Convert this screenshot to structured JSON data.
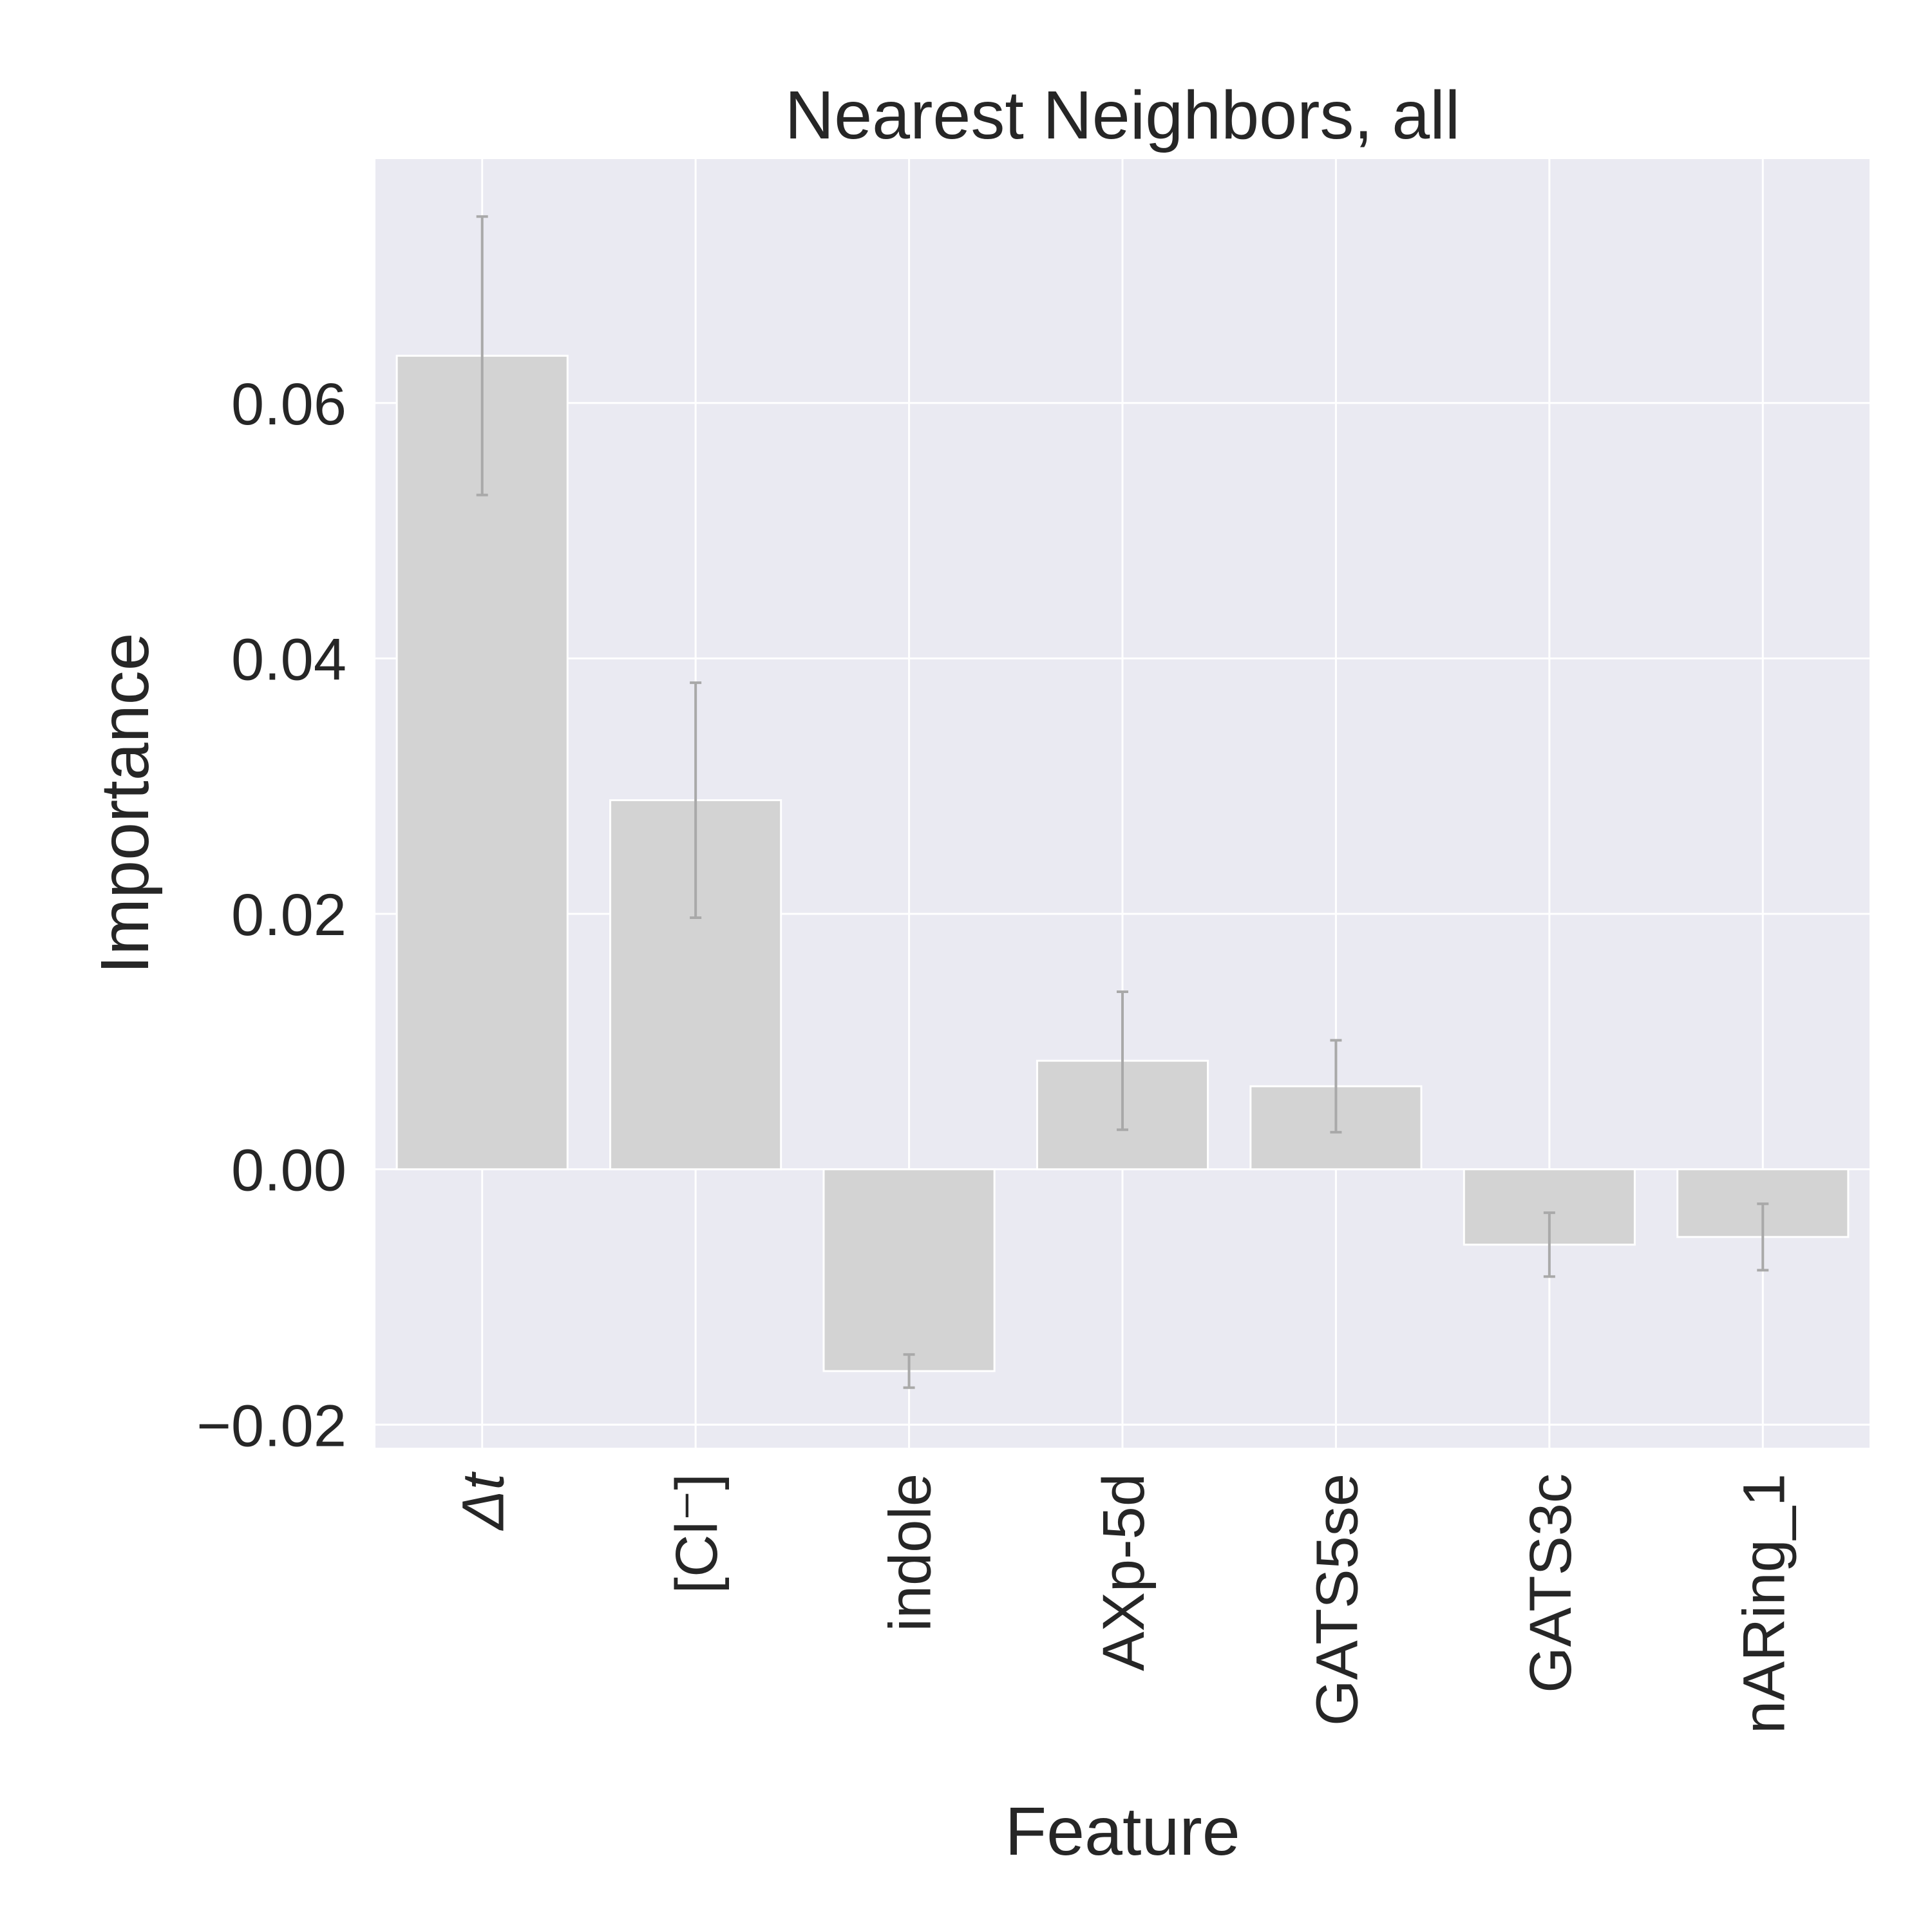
{
  "chart_data": {
    "type": "bar",
    "title": "Nearest Neighbors, all",
    "xlabel": "Feature",
    "ylabel": "Importance",
    "categories": [
      "Δt",
      "[Cl⁻]",
      "indole",
      "AXp-5d",
      "GATS5se",
      "GATS3c",
      "nARing_1"
    ],
    "values": [
      0.0637,
      0.0289,
      -0.0158,
      0.0085,
      0.0065,
      -0.0059,
      -0.0053
    ],
    "error": [
      0.0109,
      0.0092,
      0.0013,
      0.0054,
      0.0036,
      0.0025,
      0.0026
    ],
    "ylim": [
      -0.0218,
      0.0791
    ],
    "yticks": [
      -0.02,
      0.0,
      0.02,
      0.04,
      0.06
    ],
    "ytick_labels": [
      "−0.02",
      "0.00",
      "0.02",
      "0.04",
      "0.06"
    ],
    "grid": true,
    "colors": {
      "bar": "#d3d3d3",
      "bar_edge": "#ffffff",
      "error_bar": "#a9a9a9",
      "plot_background": "#eaeaf2",
      "grid": "#ffffff",
      "text": "#262626"
    }
  }
}
